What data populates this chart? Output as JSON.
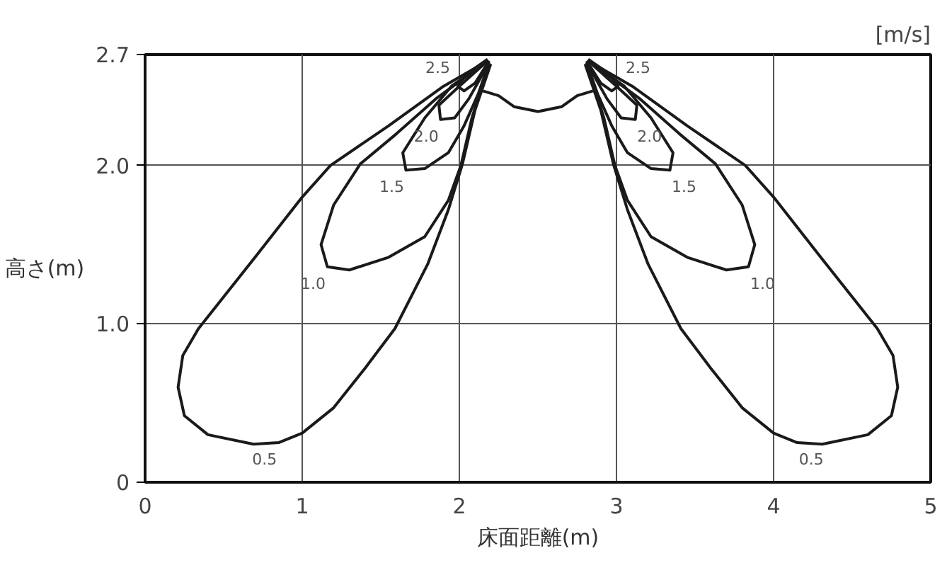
{
  "chart_data": {
    "type": "line",
    "xlabel": "床面距離(m)",
    "ylabel": "高さ(m)",
    "xlim": [
      0,
      5
    ],
    "ylim": [
      0,
      2.7
    ],
    "xticks": [
      0,
      1,
      2,
      3,
      4,
      5
    ],
    "yticks": [
      0,
      {
        "value": 1,
        "label": "1.0"
      },
      {
        "value": 2,
        "label": "2.0"
      },
      2.7
    ],
    "grid": true,
    "series": [
      {
        "color": "#1a1a1a",
        "x": [
          2.18,
          1.9,
          1.55,
          1.18,
          1.0,
          0.7,
          0.34,
          0.24,
          0.21,
          0.25,
          0.4,
          0.69,
          0.85,
          1.0,
          1.2,
          1.4,
          1.59,
          1.8,
          1.93,
          2.02,
          2.1,
          2.2
        ],
        "values": [
          2.66,
          2.5,
          2.25,
          2.0,
          1.8,
          1.42,
          0.97,
          0.8,
          0.6,
          0.42,
          0.3,
          0.24,
          0.25,
          0.31,
          0.47,
          0.72,
          0.97,
          1.38,
          1.72,
          2.01,
          2.35,
          2.64
        ]
      },
      {
        "color": "#1a1a1a",
        "x": [
          2.18,
          1.85,
          1.6,
          1.37,
          1.2,
          1.12,
          1.16,
          1.3,
          1.55,
          1.78,
          1.93,
          2.01,
          2.08,
          2.19
        ],
        "values": [
          2.66,
          2.42,
          2.2,
          2.01,
          1.75,
          1.5,
          1.36,
          1.34,
          1.42,
          1.55,
          1.78,
          2.0,
          2.3,
          2.64
        ]
      },
      {
        "color": "#1a1a1a",
        "x": [
          2.18,
          1.95,
          1.78,
          1.64,
          1.66,
          1.78,
          1.93,
          2.03,
          2.12,
          2.19
        ],
        "values": [
          2.66,
          2.5,
          2.3,
          2.08,
          1.97,
          1.98,
          2.08,
          2.25,
          2.45,
          2.65
        ]
      },
      {
        "color": "#1a1a1a",
        "x": [
          2.18,
          2.0,
          1.87,
          1.88,
          1.97,
          2.06,
          2.19
        ],
        "values": [
          2.66,
          2.5,
          2.38,
          2.29,
          2.3,
          2.42,
          2.65
        ]
      },
      {
        "color": "#1a1a1a",
        "x": [
          2.18,
          2.05,
          1.99,
          2.03,
          2.1,
          2.19
        ],
        "values": [
          2.67,
          2.58,
          2.5,
          2.47,
          2.52,
          2.66
        ]
      },
      {
        "color": "#1a1a1a",
        "x": [
          2.15,
          2.25,
          2.35,
          2.5,
          2.65,
          2.75,
          2.85
        ],
        "values": [
          2.47,
          2.44,
          2.37,
          2.34,
          2.37,
          2.44,
          2.47
        ]
      },
      {
        "color": "#1a1a1a",
        "x": [
          2.82,
          3.1,
          3.45,
          3.82,
          4.0,
          4.3,
          4.66,
          4.76,
          4.79,
          4.75,
          4.6,
          4.31,
          4.15,
          4.0,
          3.8,
          3.6,
          3.41,
          3.2,
          3.07,
          2.98,
          2.9,
          2.8
        ],
        "values": [
          2.66,
          2.5,
          2.25,
          2.0,
          1.8,
          1.42,
          0.97,
          0.8,
          0.6,
          0.42,
          0.3,
          0.24,
          0.25,
          0.31,
          0.47,
          0.72,
          0.97,
          1.38,
          1.72,
          2.01,
          2.35,
          2.64
        ]
      },
      {
        "color": "#1a1a1a",
        "x": [
          2.82,
          3.15,
          3.4,
          3.63,
          3.8,
          3.88,
          3.84,
          3.7,
          3.45,
          3.22,
          3.07,
          2.99,
          2.92,
          2.81
        ],
        "values": [
          2.66,
          2.42,
          2.2,
          2.01,
          1.75,
          1.5,
          1.36,
          1.34,
          1.42,
          1.55,
          1.78,
          2.0,
          2.3,
          2.64
        ]
      },
      {
        "color": "#1a1a1a",
        "x": [
          2.82,
          3.05,
          3.22,
          3.36,
          3.34,
          3.22,
          3.07,
          2.97,
          2.88,
          2.81
        ],
        "values": [
          2.66,
          2.5,
          2.3,
          2.08,
          1.97,
          1.98,
          2.08,
          2.25,
          2.45,
          2.65
        ]
      },
      {
        "color": "#1a1a1a",
        "x": [
          2.82,
          3.0,
          3.13,
          3.12,
          3.03,
          2.94,
          2.81
        ],
        "values": [
          2.66,
          2.5,
          2.38,
          2.29,
          2.3,
          2.42,
          2.65
        ]
      },
      {
        "color": "#1a1a1a",
        "x": [
          2.82,
          2.95,
          3.01,
          2.97,
          2.9,
          2.81
        ],
        "values": [
          2.67,
          2.58,
          2.5,
          2.47,
          2.52,
          2.66
        ]
      }
    ],
    "annotations": [
      {
        "text": "0.5",
        "x": 0.85,
        "y": 0.25
      },
      {
        "text": "1.0",
        "x": 1.16,
        "y": 1.36
      },
      {
        "text": "1.5",
        "x": 1.66,
        "y": 1.97
      },
      {
        "text": "2.0",
        "x": 1.88,
        "y": 2.29
      },
      {
        "text": "2.5",
        "x": 2.05,
        "y": 2.58
      },
      {
        "text": "0.5",
        "x": 4.15,
        "y": 0.25
      },
      {
        "text": "1.0",
        "x": 3.84,
        "y": 1.36
      },
      {
        "text": "1.5",
        "x": 3.34,
        "y": 1.97
      },
      {
        "text": "2.0",
        "x": 3.12,
        "y": 2.29
      },
      {
        "text": "2.5",
        "x": 2.95,
        "y": 2.58
      },
      "[m/s]"
    ]
  }
}
